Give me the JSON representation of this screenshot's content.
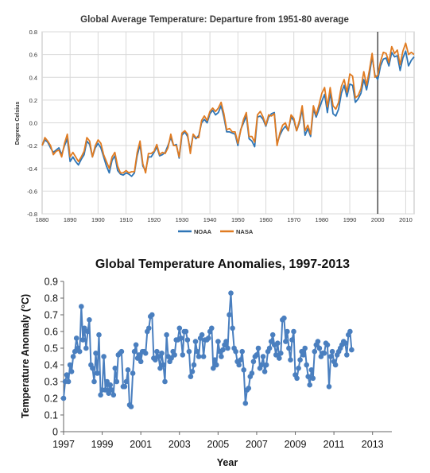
{
  "chart_data": [
    {
      "type": "line",
      "title": "Global Average Temperature: Departure from 1951-80 average",
      "ylabel": "Degrees Celsius",
      "xlabel": "",
      "xlim": [
        1880,
        2013
      ],
      "ylim": [
        -0.8,
        0.8
      ],
      "x_ticks": [
        1880,
        1890,
        1900,
        1910,
        1920,
        1930,
        1940,
        1950,
        1960,
        1970,
        1980,
        1990,
        2000,
        2010
      ],
      "y_ticks": [
        "-0.8",
        "-0.6",
        "-0.4",
        "-0.2",
        "0.0",
        "0.2",
        "0.4",
        "0.6",
        "0.8"
      ],
      "grid": true,
      "legend_position": "bottom",
      "reference_line_x": 2000,
      "colors": {
        "NOAA": "#2e75b6",
        "NASA": "#e07b21"
      },
      "series": [
        {
          "name": "NOAA",
          "x": [
            1880,
            1881,
            1882,
            1883,
            1884,
            1885,
            1886,
            1887,
            1888,
            1889,
            1890,
            1891,
            1892,
            1893,
            1894,
            1895,
            1896,
            1897,
            1898,
            1899,
            1900,
            1901,
            1902,
            1903,
            1904,
            1905,
            1906,
            1907,
            1908,
            1909,
            1910,
            1911,
            1912,
            1913,
            1914,
            1915,
            1916,
            1917,
            1918,
            1919,
            1920,
            1921,
            1922,
            1923,
            1924,
            1925,
            1926,
            1927,
            1928,
            1929,
            1930,
            1931,
            1932,
            1933,
            1934,
            1935,
            1936,
            1937,
            1938,
            1939,
            1940,
            1941,
            1942,
            1943,
            1944,
            1945,
            1946,
            1947,
            1948,
            1949,
            1950,
            1951,
            1952,
            1953,
            1954,
            1955,
            1956,
            1957,
            1958,
            1959,
            1960,
            1961,
            1962,
            1963,
            1964,
            1965,
            1966,
            1967,
            1968,
            1969,
            1970,
            1971,
            1972,
            1973,
            1974,
            1975,
            1976,
            1977,
            1978,
            1979,
            1980,
            1981,
            1982,
            1983,
            1984,
            1985,
            1986,
            1987,
            1988,
            1989,
            1990,
            1991,
            1992,
            1993,
            1994,
            1995,
            1996,
            1997,
            1998,
            1999,
            2000,
            2001,
            2002,
            2003,
            2004,
            2005,
            2006,
            2007,
            2008,
            2009,
            2010,
            2011,
            2012,
            2013
          ],
          "values": [
            -0.2,
            -0.15,
            -0.17,
            -0.22,
            -0.26,
            -0.24,
            -0.22,
            -0.28,
            -0.2,
            -0.14,
            -0.34,
            -0.3,
            -0.34,
            -0.37,
            -0.32,
            -0.28,
            -0.16,
            -0.19,
            -0.3,
            -0.22,
            -0.18,
            -0.22,
            -0.3,
            -0.38,
            -0.44,
            -0.33,
            -0.29,
            -0.42,
            -0.45,
            -0.46,
            -0.44,
            -0.45,
            -0.47,
            -0.44,
            -0.29,
            -0.19,
            -0.38,
            -0.42,
            -0.3,
            -0.3,
            -0.26,
            -0.21,
            -0.29,
            -0.28,
            -0.26,
            -0.2,
            -0.13,
            -0.2,
            -0.19,
            -0.31,
            -0.11,
            -0.08,
            -0.12,
            -0.24,
            -0.11,
            -0.14,
            -0.11,
            0.0,
            0.03,
            0.0,
            0.08,
            0.11,
            0.07,
            0.09,
            0.15,
            0.05,
            -0.08,
            -0.08,
            -0.09,
            -0.1,
            -0.2,
            -0.06,
            0.0,
            0.06,
            -0.14,
            -0.16,
            -0.21,
            0.05,
            0.06,
            0.03,
            -0.03,
            0.05,
            0.08,
            0.09,
            -0.18,
            -0.11,
            -0.06,
            -0.03,
            -0.07,
            0.05,
            0.02,
            -0.07,
            0.0,
            0.12,
            -0.11,
            -0.05,
            -0.12,
            0.12,
            0.05,
            0.12,
            0.19,
            0.25,
            0.09,
            0.27,
            0.08,
            0.06,
            0.12,
            0.26,
            0.33,
            0.23,
            0.34,
            0.33,
            0.18,
            0.21,
            0.26,
            0.38,
            0.29,
            0.42,
            0.58,
            0.42,
            0.38,
            0.5,
            0.56,
            0.57,
            0.5,
            0.62,
            0.58,
            0.59,
            0.46,
            0.57,
            0.63,
            0.5,
            0.55,
            0.58
          ]
        },
        {
          "name": "NASA",
          "x": [
            1880,
            1881,
            1882,
            1883,
            1884,
            1885,
            1886,
            1887,
            1888,
            1889,
            1890,
            1891,
            1892,
            1893,
            1894,
            1895,
            1896,
            1897,
            1898,
            1899,
            1900,
            1901,
            1902,
            1903,
            1904,
            1905,
            1906,
            1907,
            1908,
            1909,
            1910,
            1911,
            1912,
            1913,
            1914,
            1915,
            1916,
            1917,
            1918,
            1919,
            1920,
            1921,
            1922,
            1923,
            1924,
            1925,
            1926,
            1927,
            1928,
            1929,
            1930,
            1931,
            1932,
            1933,
            1934,
            1935,
            1936,
            1937,
            1938,
            1939,
            1940,
            1941,
            1942,
            1943,
            1944,
            1945,
            1946,
            1947,
            1948,
            1949,
            1950,
            1951,
            1952,
            1953,
            1954,
            1955,
            1956,
            1957,
            1958,
            1959,
            1960,
            1961,
            1962,
            1963,
            1964,
            1965,
            1966,
            1967,
            1968,
            1969,
            1970,
            1971,
            1972,
            1973,
            1974,
            1975,
            1976,
            1977,
            1978,
            1979,
            1980,
            1981,
            1982,
            1983,
            1984,
            1985,
            1986,
            1987,
            1988,
            1989,
            1990,
            1991,
            1992,
            1993,
            1994,
            1995,
            1996,
            1997,
            1998,
            1999,
            2000,
            2001,
            2002,
            2003,
            2004,
            2005,
            2006,
            2007,
            2008,
            2009,
            2010,
            2011,
            2012,
            2013
          ],
          "values": [
            -0.2,
            -0.13,
            -0.16,
            -0.2,
            -0.28,
            -0.25,
            -0.24,
            -0.3,
            -0.18,
            -0.1,
            -0.3,
            -0.26,
            -0.3,
            -0.34,
            -0.3,
            -0.25,
            -0.13,
            -0.16,
            -0.3,
            -0.2,
            -0.15,
            -0.18,
            -0.28,
            -0.34,
            -0.4,
            -0.3,
            -0.26,
            -0.38,
            -0.44,
            -0.44,
            -0.42,
            -0.44,
            -0.43,
            -0.43,
            -0.26,
            -0.16,
            -0.36,
            -0.44,
            -0.27,
            -0.27,
            -0.25,
            -0.19,
            -0.28,
            -0.26,
            -0.27,
            -0.22,
            -0.1,
            -0.2,
            -0.2,
            -0.3,
            -0.09,
            -0.07,
            -0.1,
            -0.27,
            -0.1,
            -0.13,
            -0.13,
            0.02,
            0.06,
            0.02,
            0.1,
            0.13,
            0.1,
            0.13,
            0.18,
            0.08,
            -0.06,
            -0.05,
            -0.08,
            -0.08,
            -0.18,
            -0.07,
            0.03,
            0.09,
            -0.12,
            -0.12,
            -0.17,
            0.07,
            0.1,
            0.05,
            -0.02,
            0.07,
            0.06,
            0.08,
            -0.2,
            -0.09,
            -0.02,
            0.0,
            -0.07,
            0.07,
            0.04,
            -0.07,
            0.02,
            0.15,
            -0.07,
            -0.02,
            -0.1,
            0.15,
            0.07,
            0.16,
            0.26,
            0.31,
            0.14,
            0.31,
            0.15,
            0.12,
            0.18,
            0.32,
            0.38,
            0.27,
            0.43,
            0.41,
            0.22,
            0.24,
            0.3,
            0.45,
            0.33,
            0.46,
            0.61,
            0.4,
            0.42,
            0.54,
            0.62,
            0.61,
            0.53,
            0.67,
            0.61,
            0.64,
            0.51,
            0.63,
            0.7,
            0.6,
            0.62,
            0.6
          ]
        }
      ]
    },
    {
      "type": "line",
      "title": "Global Temperature Anomalies, 1997-2013",
      "xlabel": "Year",
      "ylabel": "Temperature Anomaly (°C)",
      "xlim": [
        1997,
        2014
      ],
      "ylim": [
        0,
        0.9
      ],
      "x_ticks": [
        1997,
        1999,
        2001,
        2003,
        2005,
        2007,
        2009,
        2011,
        2013
      ],
      "y_ticks": [
        "0",
        "0.1",
        "0.2",
        "0.3",
        "0.4",
        "0.5",
        "0.6",
        "0.7",
        "0.8",
        "0.9"
      ],
      "grid": false,
      "color": "#4a7fbf",
      "series": [
        {
          "name": "",
          "x_start": 1997.0,
          "x_step": 0.083333,
          "values": [
            0.2,
            0.3,
            0.34,
            0.3,
            0.4,
            0.36,
            0.45,
            0.48,
            0.56,
            0.5,
            0.48,
            0.75,
            0.55,
            0.62,
            0.5,
            0.6,
            0.67,
            0.4,
            0.38,
            0.3,
            0.47,
            0.35,
            0.58,
            0.22,
            0.25,
            0.45,
            0.25,
            0.3,
            0.23,
            0.28,
            0.25,
            0.22,
            0.38,
            0.3,
            0.46,
            0.47,
            0.48,
            0.27,
            0.27,
            0.3,
            0.37,
            0.16,
            0.15,
            0.35,
            0.48,
            0.52,
            0.44,
            0.46,
            0.42,
            0.48,
            0.48,
            0.47,
            0.6,
            0.62,
            0.69,
            0.7,
            0.44,
            0.43,
            0.48,
            0.45,
            0.38,
            0.47,
            0.4,
            0.3,
            0.58,
            0.45,
            0.42,
            0.44,
            0.48,
            0.46,
            0.55,
            0.55,
            0.62,
            0.56,
            0.46,
            0.6,
            0.6,
            0.55,
            0.48,
            0.33,
            0.36,
            0.4,
            0.54,
            0.48,
            0.45,
            0.56,
            0.58,
            0.45,
            0.55,
            0.55,
            0.56,
            0.6,
            0.62,
            0.38,
            0.43,
            0.4,
            0.54,
            0.48,
            0.45,
            0.49,
            0.52,
            0.54,
            0.5,
            0.7,
            0.83,
            0.62,
            0.5,
            0.48,
            0.42,
            0.4,
            0.43,
            0.48,
            0.37,
            0.17,
            0.25,
            0.26,
            0.33,
            0.35,
            0.42,
            0.45,
            0.46,
            0.5,
            0.38,
            0.4,
            0.45,
            0.36,
            0.4,
            0.48,
            0.5,
            0.54,
            0.58,
            0.52,
            0.46,
            0.53,
            0.44,
            0.47,
            0.67,
            0.68,
            0.54,
            0.6,
            0.5,
            0.43,
            0.55,
            0.6,
            0.34,
            0.32,
            0.38,
            0.43,
            0.48,
            0.46,
            0.5,
            0.4,
            0.33,
            0.28,
            0.37,
            0.32,
            0.48,
            0.52,
            0.54,
            0.5,
            0.45,
            0.47,
            0.47,
            0.53,
            0.52,
            0.27,
            0.45,
            0.48,
            0.42,
            0.4,
            0.46,
            0.48,
            0.5,
            0.52,
            0.54,
            0.53,
            0.46,
            0.58,
            0.6,
            0.49
          ]
        }
      ]
    }
  ]
}
